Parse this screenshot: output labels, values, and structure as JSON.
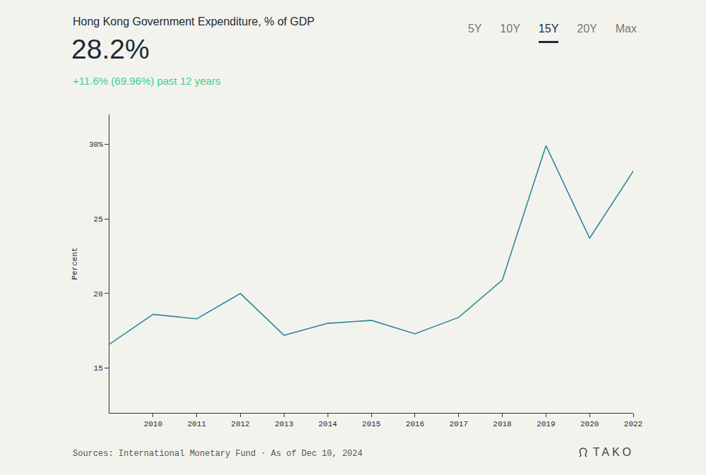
{
  "chart_data": {
    "type": "line",
    "title": "Hong Kong Government Expenditure, % of GDP",
    "headline": "28.2%",
    "subtitle": "+11.6% (69.96%) past 12 years",
    "range_buttons": [
      "5Y",
      "10Y",
      "15Y",
      "20Y",
      "Max"
    ],
    "selected_range": "15Y",
    "y_label": "Percent",
    "source": "Sources: International Monetary Fund · As of Dec 10, 2024",
    "brand": "TAKO",
    "categories": [
      null,
      "2010",
      "2011",
      "2012",
      "2013",
      "2014",
      "2015",
      "2016",
      "2017",
      "2018",
      "2019",
      "2020",
      "2022"
    ],
    "values": [
      16.6,
      18.6,
      18.3,
      20.0,
      17.2,
      18.0,
      18.2,
      17.3,
      18.4,
      20.9,
      29.9,
      23.7,
      28.2
    ],
    "color": "#2e8a99",
    "line_style": "solid",
    "ylim": [
      12,
      32
    ],
    "yticks": [
      15,
      20,
      25,
      {
        "value": 30,
        "label": "30%"
      }
    ],
    "grid": false
  }
}
